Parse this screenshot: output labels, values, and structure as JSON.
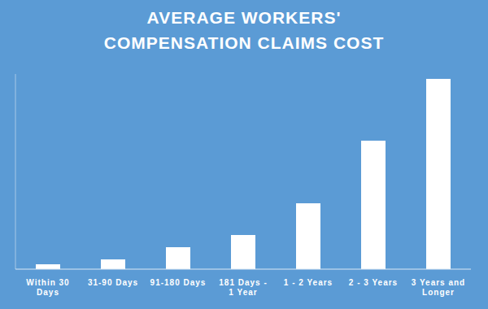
{
  "chart_data": {
    "type": "bar",
    "title": "AVERAGE WORKERS' COMPENSATION CLAIMS COST",
    "categories": [
      "Within 30 Days",
      "31-90 Days",
      "91-180 Days",
      "181 Days - 1 Year",
      "1 - 2 Years",
      "2 - 3 Years",
      "3 Years and Longer"
    ],
    "values": [
      6,
      12,
      27,
      42,
      81,
      158,
      234
    ],
    "color": "#ffffff",
    "ylim": [
      0,
      240
    ],
    "grid": false,
    "tick_labels": "x"
  }
}
